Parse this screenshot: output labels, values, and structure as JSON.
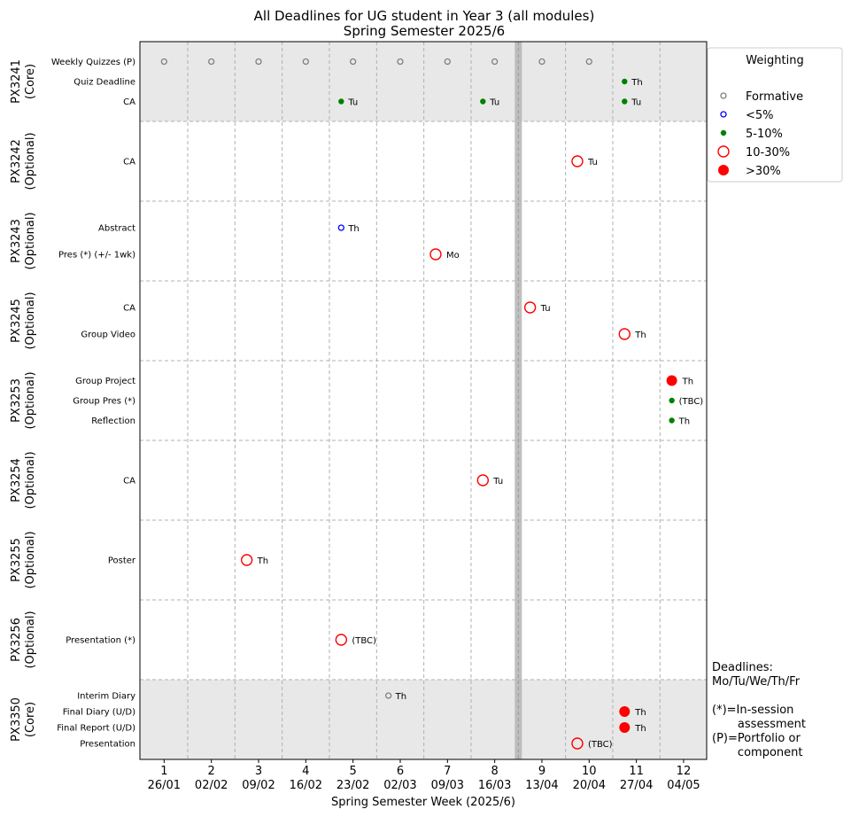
{
  "chart_data": {
    "type": "scatter",
    "title": "All Deadlines for UG student in Year 3 (all modules)",
    "subtitle": "Spring Semester 2025/6",
    "xlabel": "Spring Semester Week (2025/6)",
    "xlim": [
      0.5,
      12.5
    ],
    "x_ticks": [
      {
        "week": "1",
        "date": "26/01"
      },
      {
        "week": "2",
        "date": "02/02"
      },
      {
        "week": "3",
        "date": "09/02"
      },
      {
        "week": "4",
        "date": "16/02"
      },
      {
        "week": "5",
        "date": "23/02"
      },
      {
        "week": "6",
        "date": "02/03"
      },
      {
        "week": "7",
        "date": "09/03"
      },
      {
        "week": "8",
        "date": "16/03"
      },
      {
        "week": "9",
        "date": "13/04"
      },
      {
        "week": "10",
        "date": "20/04"
      },
      {
        "week": "11",
        "date": "27/04"
      },
      {
        "week": "12",
        "date": "04/05"
      }
    ],
    "break_after_week": 8,
    "grid": true,
    "legend": {
      "title": "Weighting",
      "placement": "outside-top-right",
      "entries": [
        {
          "label": "Formative",
          "category": "formative"
        },
        {
          "label": "<5%",
          "category": "lt5"
        },
        {
          "label": "5-10%",
          "category": "w5_10"
        },
        {
          "label": "10-30%",
          "category": "w10_30"
        },
        {
          "label": ">30%",
          "category": "gt30"
        }
      ]
    },
    "modules": [
      {
        "code": "PX3241",
        "type": "(Core)",
        "shaded": true,
        "items": [
          {
            "name": "Weekly Quizzes (P)",
            "points": [
              {
                "x": 1,
                "category": "formative"
              },
              {
                "x": 2,
                "category": "formative"
              },
              {
                "x": 3,
                "category": "formative"
              },
              {
                "x": 4,
                "category": "formative"
              },
              {
                "x": 5,
                "category": "formative"
              },
              {
                "x": 6,
                "category": "formative"
              },
              {
                "x": 7,
                "category": "formative"
              },
              {
                "x": 8,
                "category": "formative"
              },
              {
                "x": 9,
                "category": "formative"
              },
              {
                "x": 10,
                "category": "formative"
              }
            ]
          },
          {
            "name": "Quiz Deadline",
            "points": [
              {
                "x": 10.75,
                "category": "w5_10",
                "day": "Th"
              }
            ]
          },
          {
            "name": "CA",
            "points": [
              {
                "x": 4.75,
                "category": "w5_10",
                "day": "Tu"
              },
              {
                "x": 7.75,
                "category": "w5_10",
                "day": "Tu"
              },
              {
                "x": 10.75,
                "category": "w5_10",
                "day": "Tu"
              }
            ]
          }
        ]
      },
      {
        "code": "PX3242",
        "type": "(Optional)",
        "shaded": false,
        "items": [
          {
            "name": "CA",
            "points": [
              {
                "x": 9.75,
                "category": "w10_30",
                "day": "Tu"
              }
            ]
          }
        ]
      },
      {
        "code": "PX3243",
        "type": "(Optional)",
        "shaded": false,
        "items": [
          {
            "name": "Abstract",
            "points": [
              {
                "x": 4.75,
                "category": "lt5",
                "day": "Th"
              }
            ]
          },
          {
            "name": "Pres (*) (+/- 1wk)",
            "points": [
              {
                "x": 6.75,
                "category": "w10_30",
                "day": "Mo"
              }
            ]
          }
        ]
      },
      {
        "code": "PX3245",
        "type": "(Optional)",
        "shaded": false,
        "items": [
          {
            "name": "CA",
            "points": [
              {
                "x": 8.75,
                "category": "w10_30",
                "day": "Tu"
              }
            ]
          },
          {
            "name": "Group Video",
            "points": [
              {
                "x": 10.75,
                "category": "w10_30",
                "day": "Th"
              }
            ]
          }
        ]
      },
      {
        "code": "PX3253",
        "type": "(Optional)",
        "shaded": false,
        "items": [
          {
            "name": "Group Project",
            "points": [
              {
                "x": 11.75,
                "category": "gt30",
                "day": "Th"
              }
            ]
          },
          {
            "name": "Group Pres (*)",
            "points": [
              {
                "x": 11.75,
                "category": "w5_10",
                "day": "(TBC)"
              }
            ]
          },
          {
            "name": "Reflection",
            "points": [
              {
                "x": 11.75,
                "category": "w5_10",
                "day": "Th"
              }
            ]
          }
        ]
      },
      {
        "code": "PX3254",
        "type": "(Optional)",
        "shaded": false,
        "items": [
          {
            "name": "CA",
            "points": [
              {
                "x": 7.75,
                "category": "w10_30",
                "day": "Tu"
              }
            ]
          }
        ]
      },
      {
        "code": "PX3255",
        "type": "(Optional)",
        "shaded": false,
        "items": [
          {
            "name": "Poster",
            "points": [
              {
                "x": 2.75,
                "category": "w10_30",
                "day": "Th"
              }
            ]
          }
        ]
      },
      {
        "code": "PX3256",
        "type": "(Optional)",
        "shaded": false,
        "items": [
          {
            "name": "Presentation (*)",
            "points": [
              {
                "x": 4.75,
                "category": "w10_30",
                "day": "(TBC)"
              }
            ]
          }
        ]
      },
      {
        "code": "PX3350",
        "type": "(Core)",
        "shaded": true,
        "items": [
          {
            "name": "Interim Diary",
            "points": [
              {
                "x": 5.75,
                "category": "formative",
                "day": "Th"
              }
            ]
          },
          {
            "name": "Final Diary (U/D)",
            "points": [
              {
                "x": 10.75,
                "category": "gt30",
                "day": "Th"
              }
            ]
          },
          {
            "name": "Final Report (U/D)",
            "points": [
              {
                "x": 10.75,
                "category": "gt30",
                "day": "Th"
              }
            ]
          },
          {
            "name": "Presentation",
            "points": [
              {
                "x": 9.75,
                "category": "w10_30",
                "day": "(TBC)"
              }
            ]
          }
        ]
      }
    ],
    "colors": {
      "formative": "#808080",
      "lt5": "#0000ff",
      "w5_10": "#008000",
      "w10_30": "#ff0000",
      "gt30": "#ff0000",
      "shade": "#e8e8e8",
      "break": "#b8b8b8",
      "grid": "#b0b0b0"
    }
  },
  "notes": [
    "Deadlines:",
    "Mo/Tu/We/Th/Fr",
    "",
    "(*)=In-session",
    "       assessment",
    "(P)=Portfolio or",
    "       component"
  ]
}
